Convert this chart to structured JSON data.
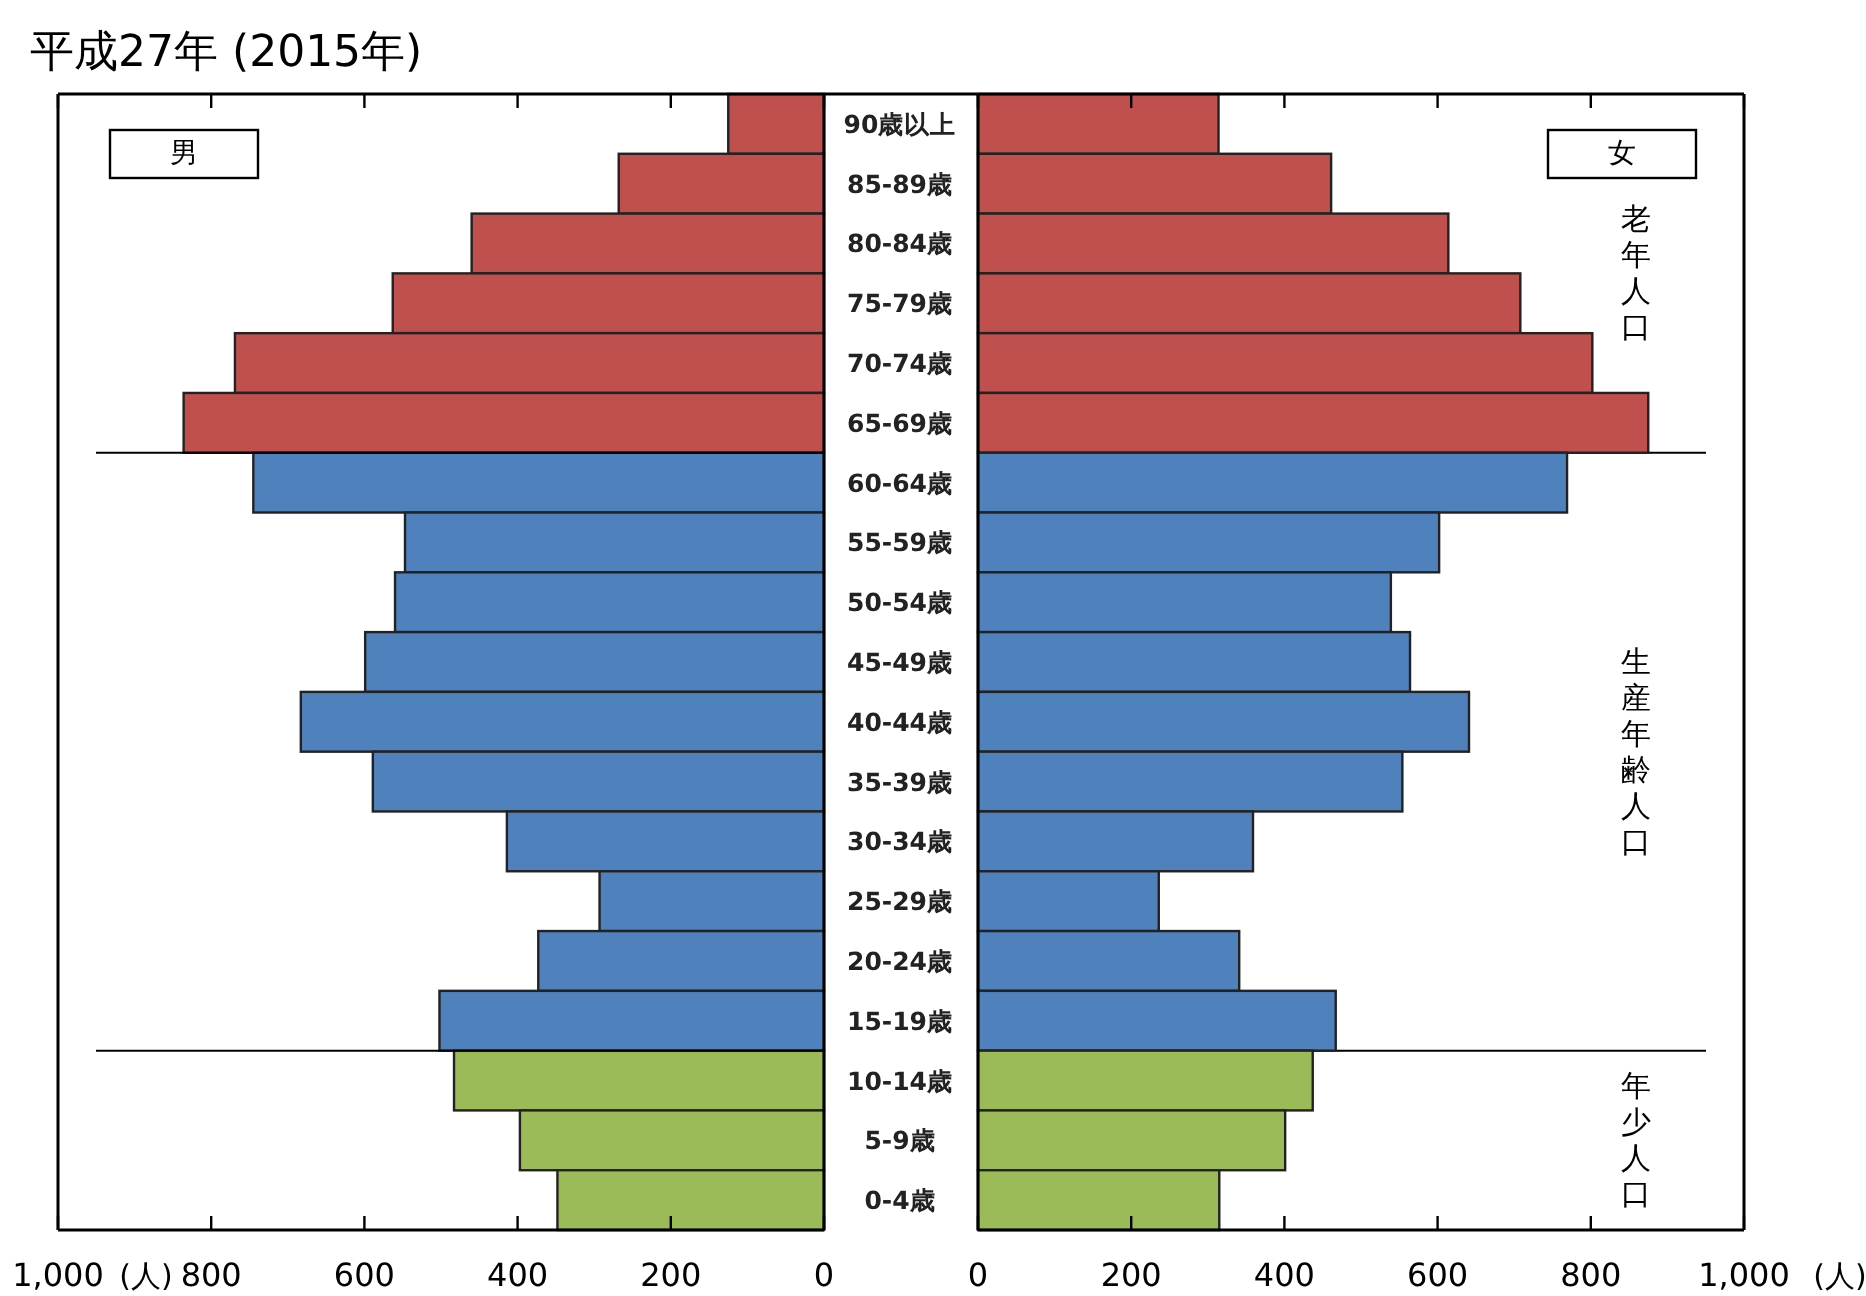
{
  "chart_data": [
    {
      "type": "bar",
      "orientation": "horizontal",
      "title": "平成27年 (2015年)",
      "xlabel": "(人)",
      "categories": [
        "90歳以上",
        "85-89歳",
        "80-84歳",
        "75-79歳",
        "70-74歳",
        "65-69歳",
        "60-64歳",
        "55-59歳",
        "50-54歳",
        "45-49歳",
        "40-44歳",
        "35-39歳",
        "30-34歳",
        "25-29歳",
        "20-24歳",
        "15-19歳",
        "10-14歳",
        "5-9歳",
        "0-4歳"
      ],
      "values": [
        125,
        268,
        460,
        563,
        769,
        836,
        745,
        547,
        560,
        599,
        683,
        589,
        414,
        293,
        373,
        502,
        483,
        397,
        348
      ],
      "colors": [
        "#c0504d",
        "#c0504d",
        "#c0504d",
        "#c0504d",
        "#c0504d",
        "#c0504d",
        "#4f81bd",
        "#4f81bd",
        "#4f81bd",
        "#4f81bd",
        "#4f81bd",
        "#4f81bd",
        "#4f81bd",
        "#4f81bd",
        "#4f81bd",
        "#4f81bd",
        "#9bbb59",
        "#9bbb59",
        "#9bbb59"
      ],
      "xlim": [
        1000,
        0
      ],
      "xticks": [
        {
          "value": 1000,
          "label": "1,000"
        },
        800,
        600,
        400,
        200,
        0
      ],
      "ref_lines": [
        {
          "axis": "y",
          "value": "65-69歳"
        },
        {
          "axis": "y",
          "value": "15-19歳"
        }
      ],
      "annotations": [
        "男"
      ]
    },
    {
      "type": "bar",
      "orientation": "horizontal",
      "xlabel": "(人)",
      "tick_labels": "x",
      "categories": [
        "90歳以上",
        "85-89歳",
        "80-84歳",
        "75-79歳",
        "70-74歳",
        "65-69歳",
        "60-64歳",
        "55-59歳",
        "50-54歳",
        "45-49歳",
        "40-44歳",
        "35-39歳",
        "30-34歳",
        "25-29歳",
        "20-24歳",
        "15-19歳",
        "10-14歳",
        "5-9歳",
        "0-4歳"
      ],
      "values": [
        314,
        461,
        614,
        708,
        802,
        875,
        769,
        602,
        539,
        564,
        641,
        554,
        359,
        236,
        341,
        467,
        437,
        401,
        315
      ],
      "colors": [
        "#c0504d",
        "#c0504d",
        "#c0504d",
        "#c0504d",
        "#c0504d",
        "#c0504d",
        "#4f81bd",
        "#4f81bd",
        "#4f81bd",
        "#4f81bd",
        "#4f81bd",
        "#4f81bd",
        "#4f81bd",
        "#4f81bd",
        "#4f81bd",
        "#4f81bd",
        "#9bbb59",
        "#9bbb59",
        "#9bbb59"
      ],
      "xlim": [
        0,
        1000
      ],
      "xticks": [
        0,
        200,
        400,
        600,
        800,
        {
          "value": 1000,
          "label": "1,000"
        }
      ],
      "annotations": [
        "女",
        "老年人口",
        "生産年齢人口",
        "年少人口"
      ]
    }
  ]
}
